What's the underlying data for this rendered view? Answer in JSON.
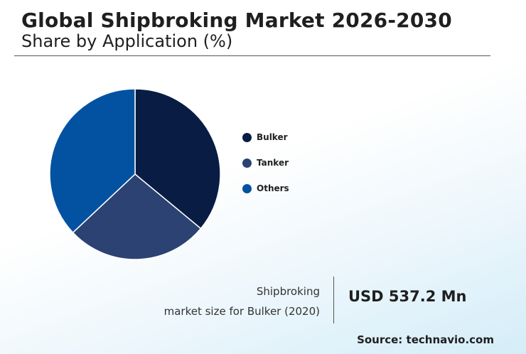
{
  "header": {
    "title": "Global Shipbroking Market 2026-2030",
    "subtitle": "Share by Application (%)"
  },
  "chart_data": {
    "type": "pie",
    "categories": [
      "Bulker",
      "Tanker",
      "Others"
    ],
    "values": [
      36,
      27,
      37
    ],
    "colors": [
      "#081c44",
      "#2b4272",
      "#0352a2"
    ],
    "legend_position": "right"
  },
  "kpi": {
    "description_line1": "Shipbroking",
    "description_line2": "market size for Bulker (2020)",
    "value": "USD 537.2 Mn"
  },
  "source": "Source: technavio.com"
}
